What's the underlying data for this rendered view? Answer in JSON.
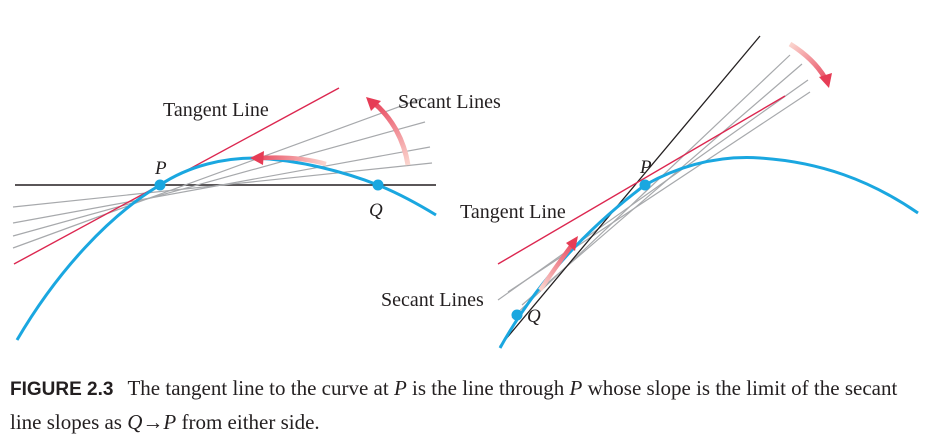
{
  "left_panel": {
    "tangent_label": "Tangent Line",
    "secant_label": "Secant Lines",
    "point_p": "P",
    "point_q": "Q"
  },
  "right_panel": {
    "tangent_label": "Tangent Line",
    "secant_label": "Secant Lines",
    "point_p": "P",
    "point_q": "Q"
  },
  "caption": {
    "figure_label": "FIGURE 2.3",
    "text_1": "The tangent line to the curve at ",
    "p1": "P",
    "text_2": " is the line through ",
    "p2": "P",
    "text_3": " whose slope is the limit of the secant line slopes as ",
    "q": "Q",
    "arrow": "→",
    "p3": "P",
    "text_4": " from either side."
  },
  "colors": {
    "curve": "#1aa7e0",
    "tangent": "#dc2750",
    "secant": "#a7a9ac",
    "axis": "#231f20",
    "arrow": "#e84c5a"
  }
}
